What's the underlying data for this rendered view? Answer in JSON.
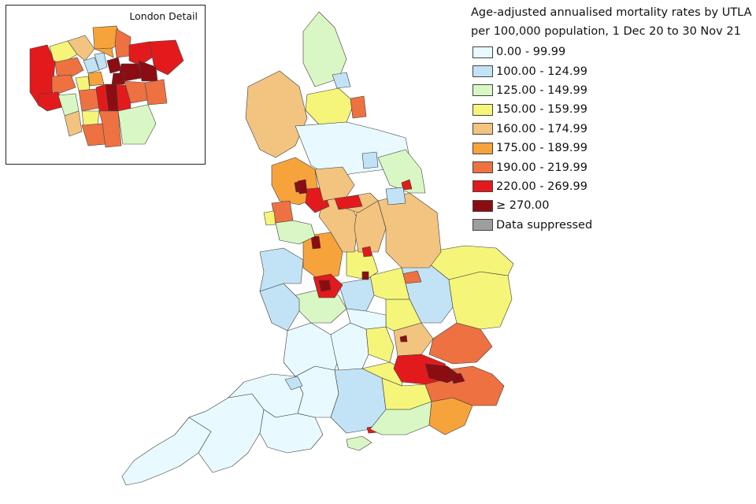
{
  "title": {
    "line1": "Age-adjusted annualised mortality rates by UTLA",
    "line2": "per 100,000 population, 1 Dec 20 to 30 Nov 21"
  },
  "inset": {
    "title": "London Detail"
  },
  "legend": [
    {
      "label": "0.00 - 99.99",
      "color": "#e8faff"
    },
    {
      "label": "100.00 - 124.99",
      "color": "#c2e3f5"
    },
    {
      "label": "125.00 - 149.99",
      "color": "#d9f7c4"
    },
    {
      "label": "150.00 - 159.99",
      "color": "#f5f57a"
    },
    {
      "label": "160.00 - 174.99",
      "color": "#f2c47f"
    },
    {
      "label": "175.00 - 189.99",
      "color": "#f7a33b"
    },
    {
      "label": "190.00 - 219.99",
      "color": "#ee7142"
    },
    {
      "label": "220.00 - 269.99",
      "color": "#e31a1c"
    },
    {
      "label": "≥ 270.00",
      "color": "#8b0d12"
    },
    {
      "label": "Data suppressed",
      "color": "#9e9e9e"
    }
  ]
}
